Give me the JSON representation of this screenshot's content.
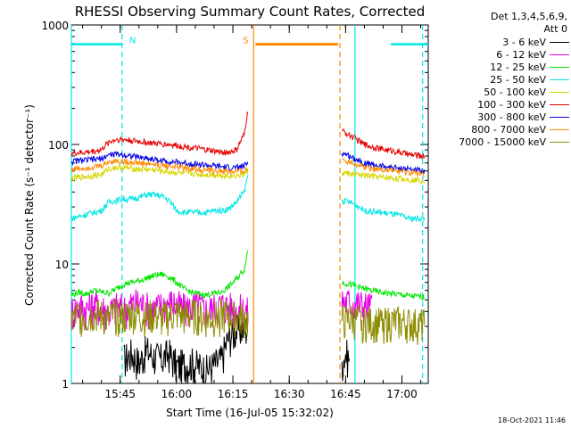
{
  "chart_data": {
    "type": "line",
    "title": "RHESSI Observing Summary Count Rates, Corrected",
    "xlabel": "Start Time (16-Jul-05 15:32:02)",
    "ylabel": "Corrected Count Rate (s⁻¹ detector⁻¹)",
    "yscale": "log",
    "ylim": [
      1,
      1000
    ],
    "xlim_minutes_after_1530": [
      2.0,
      97.0
    ],
    "x_ticks": [
      "15:45",
      "16:00",
      "16:15",
      "16:30",
      "16:45",
      "17:00"
    ],
    "x_tick_minutes": [
      15,
      30,
      45,
      60,
      75,
      90
    ],
    "y_ticks": [
      "1",
      "10",
      "100",
      "1000"
    ],
    "y_tick_values": [
      1,
      10,
      100,
      1000
    ],
    "legend_header": [
      "Det 1,3,4,5,6,9,",
      "Att 0"
    ],
    "legend_placement": "right",
    "data_gap_minutes": [
      50.5,
      73.5
    ],
    "series": [
      {
        "name": "3 - 6 keV",
        "color": "#000000",
        "x": [
          16,
          18,
          20,
          22,
          24,
          26,
          28,
          30,
          34,
          38,
          42,
          44,
          46,
          47,
          48,
          49,
          74,
          75,
          76
        ],
        "y": [
          1.6,
          1.8,
          1.5,
          1.9,
          1.7,
          1.6,
          1.8,
          1.4,
          1.5,
          1.3,
          1.6,
          2.5,
          2.8,
          2.9,
          2.9,
          2.9,
          1.5,
          1.8,
          1.6
        ]
      },
      {
        "name": "6 - 12 keV",
        "color": "#e600e6",
        "x": [
          2,
          4,
          6,
          8,
          10,
          12,
          14,
          16,
          18,
          20,
          22,
          24,
          26,
          28,
          30,
          32,
          34,
          36,
          38,
          40,
          42,
          44,
          46,
          48,
          49,
          74,
          76,
          78,
          80,
          82
        ],
        "y": [
          4.0,
          4.5,
          4.2,
          4.6,
          4.3,
          4.0,
          4.4,
          4.2,
          4.6,
          4.8,
          4.4,
          4.2,
          4.5,
          4.8,
          4.6,
          4.2,
          4.4,
          4.5,
          4.1,
          4.3,
          4.6,
          4.4,
          4.2,
          4.1,
          4.0,
          5.0,
          4.8,
          4.7,
          4.5,
          4.4
        ]
      },
      {
        "name": "12 - 25 keV",
        "color": "#00e600",
        "x": [
          2,
          4,
          6,
          8,
          10,
          12,
          14,
          16,
          18,
          20,
          22,
          24,
          26,
          28,
          30,
          32,
          34,
          36,
          38,
          40,
          42,
          44,
          46,
          48,
          49,
          74,
          76,
          78,
          80,
          84,
          88,
          92,
          96
        ],
        "y": [
          5.5,
          5.8,
          5.6,
          6.0,
          5.8,
          5.7,
          6.2,
          6.8,
          7.0,
          7.2,
          7.6,
          8.0,
          8.2,
          7.8,
          7.0,
          6.2,
          5.8,
          5.6,
          5.5,
          5.7,
          5.8,
          6.5,
          7.5,
          9.0,
          13.0,
          7.0,
          6.8,
          6.5,
          6.2,
          5.8,
          5.6,
          5.4,
          5.3
        ]
      },
      {
        "name": "25 - 50 keV",
        "color": "#00e6e6",
        "x": [
          2,
          4,
          6,
          8,
          10,
          12,
          14,
          16,
          18,
          20,
          22,
          24,
          26,
          28,
          30,
          32,
          34,
          36,
          38,
          40,
          42,
          44,
          46,
          48,
          49,
          74,
          76,
          78,
          80,
          84,
          88,
          92,
          96
        ],
        "y": [
          24,
          25,
          26,
          27,
          28,
          33,
          34,
          35,
          35,
          36,
          38,
          38,
          37,
          34,
          28,
          27,
          27,
          27,
          27,
          28,
          28,
          29,
          33,
          40,
          55,
          34,
          33,
          31,
          28,
          27,
          26,
          24,
          24
        ]
      },
      {
        "name": "50 - 100 keV",
        "color": "#d6d600",
        "x": [
          2,
          4,
          6,
          8,
          10,
          12,
          14,
          16,
          18,
          20,
          22,
          24,
          26,
          28,
          30,
          32,
          34,
          36,
          38,
          40,
          42,
          44,
          46,
          48,
          49,
          74,
          76,
          78,
          80,
          84,
          88,
          92,
          96
        ],
        "y": [
          52,
          53,
          54,
          55,
          56,
          63,
          64,
          64,
          63,
          62,
          62,
          61,
          60,
          59,
          58,
          57,
          57,
          56,
          56,
          56,
          55,
          55,
          55,
          56,
          60,
          58,
          57,
          56,
          55,
          53,
          52,
          51,
          50
        ]
      },
      {
        "name": "100 - 300 keV",
        "color": "#e60000",
        "x": [
          2,
          4,
          6,
          8,
          10,
          12,
          14,
          16,
          18,
          20,
          22,
          24,
          26,
          28,
          30,
          32,
          34,
          36,
          38,
          40,
          42,
          44,
          46,
          48,
          49,
          74,
          76,
          78,
          80,
          84,
          88,
          92,
          96
        ],
        "y": [
          84,
          85,
          86,
          88,
          90,
          105,
          110,
          110,
          108,
          106,
          104,
          102,
          101,
          100,
          98,
          96,
          94,
          92,
          90,
          88,
          86,
          86,
          90,
          120,
          190,
          130,
          120,
          110,
          100,
          92,
          88,
          82,
          80
        ]
      },
      {
        "name": "300 - 800 keV",
        "color": "#0000e6",
        "x": [
          2,
          4,
          6,
          8,
          10,
          12,
          14,
          16,
          18,
          20,
          22,
          24,
          26,
          28,
          30,
          32,
          34,
          36,
          38,
          40,
          42,
          44,
          46,
          48,
          49,
          74,
          76,
          78,
          80,
          84,
          88,
          92,
          96
        ],
        "y": [
          72,
          73,
          74,
          75,
          76,
          82,
          83,
          82,
          80,
          78,
          77,
          75,
          73,
          72,
          71,
          70,
          69,
          68,
          67,
          66,
          65,
          64,
          64,
          66,
          70,
          85,
          80,
          75,
          70,
          66,
          64,
          62,
          60
        ]
      },
      {
        "name": "800 - 7000 keV",
        "color": "#ff8800",
        "x": [
          2,
          4,
          6,
          8,
          10,
          12,
          14,
          16,
          18,
          20,
          22,
          24,
          26,
          28,
          30,
          32,
          34,
          36,
          38,
          40,
          42,
          44,
          46,
          48,
          49,
          74,
          76,
          78,
          80,
          84,
          88,
          92,
          96
        ],
        "y": [
          62,
          63,
          64,
          65,
          66,
          72,
          73,
          72,
          71,
          70,
          69,
          68,
          67,
          66,
          65,
          64,
          63,
          62,
          61,
          60,
          60,
          59,
          59,
          60,
          62,
          76,
          72,
          68,
          65,
          62,
          60,
          58,
          57
        ]
      },
      {
        "name": "7000 - 15000 keV",
        "color": "#8c8c00",
        "x": [
          2,
          4,
          6,
          8,
          10,
          12,
          14,
          16,
          18,
          20,
          22,
          24,
          26,
          28,
          30,
          32,
          34,
          36,
          38,
          40,
          42,
          44,
          46,
          48,
          49,
          74,
          76,
          78,
          80,
          84,
          88,
          92,
          96
        ],
        "y": [
          3.4,
          3.8,
          3.6,
          3.9,
          3.7,
          3.5,
          3.8,
          3.6,
          3.9,
          3.7,
          3.6,
          3.8,
          3.5,
          3.7,
          3.9,
          3.6,
          3.8,
          3.7,
          3.5,
          3.6,
          3.8,
          3.7,
          3.6,
          3.5,
          3.4,
          3.3,
          3.5,
          3.4,
          3.3,
          3.2,
          3.3,
          3.2,
          3.1
        ]
      }
    ],
    "annotations": [
      {
        "label": "N",
        "color": "#00e6e6",
        "style": "dashed",
        "x": 15.5,
        "segments": [
          [
            2.0,
            15.5
          ],
          [
            87.0,
            97.0
          ]
        ]
      },
      {
        "label": "S",
        "color": "#ff8800",
        "style": "dashed",
        "x": 50.5,
        "segments": [
          [
            51.0,
            73.0
          ]
        ]
      }
    ],
    "vertical_markers": [
      {
        "x": 2.0,
        "color": "#00e6e6",
        "style": "solid"
      },
      {
        "x": 15.5,
        "color": "#00e6e6",
        "style": "dashed"
      },
      {
        "x": 50.5,
        "color": "#ff8800",
        "style": "solid"
      },
      {
        "x": 73.5,
        "color": "#ff8800",
        "style": "dashed"
      },
      {
        "x": 77.5,
        "color": "#00e6e6",
        "style": "solid"
      },
      {
        "x": 95.5,
        "color": "#00e6e6",
        "style": "dashed"
      }
    ]
  },
  "timestamp": "18-Oct-2021 11:46"
}
